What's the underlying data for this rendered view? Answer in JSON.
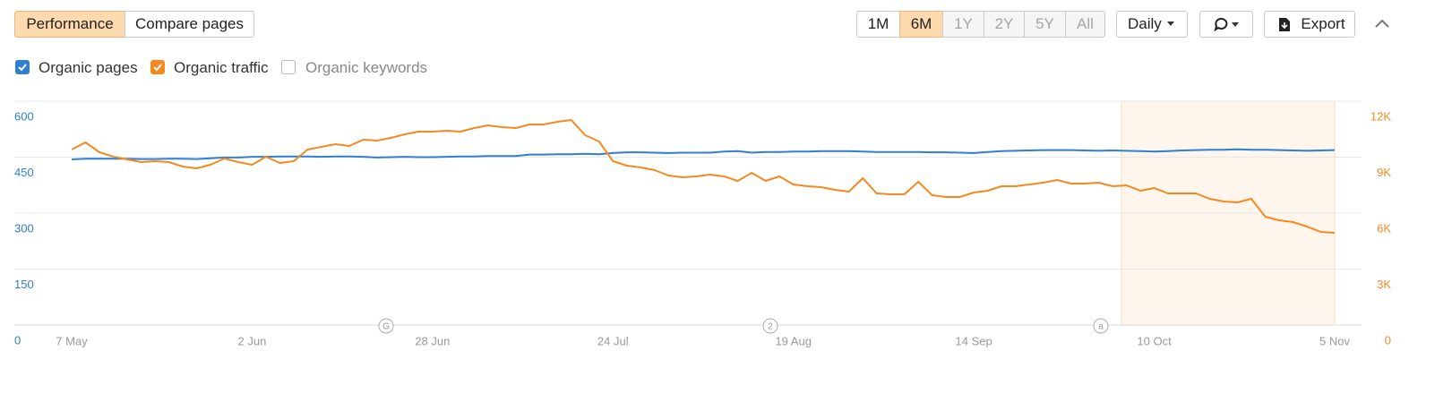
{
  "ui": {
    "tabs": [
      "Performance",
      "Compare pages"
    ],
    "periods": [
      "1M",
      "6M",
      "1Y",
      "2Y",
      "5Y",
      "All"
    ],
    "interval": "Daily",
    "export": "Export",
    "unchecked_series": "Organic keywords"
  },
  "chart_data": {
    "type": "line",
    "categories": [
      "7 May",
      null,
      null,
      null,
      null,
      null,
      null,
      null,
      null,
      null,
      null,
      null,
      null,
      "2 Jun",
      null,
      null,
      null,
      null,
      null,
      null,
      null,
      null,
      null,
      null,
      null,
      null,
      "28 Jun",
      null,
      null,
      null,
      null,
      null,
      null,
      null,
      null,
      null,
      null,
      null,
      null,
      "24 Jul",
      null,
      null,
      null,
      null,
      null,
      null,
      null,
      null,
      null,
      null,
      null,
      null,
      "19 Aug",
      null,
      null,
      null,
      null,
      null,
      null,
      null,
      null,
      null,
      null,
      null,
      null,
      "14 Sep",
      null,
      null,
      null,
      null,
      null,
      null,
      null,
      null,
      null,
      null,
      null,
      null,
      "10 Oct",
      null,
      null,
      null,
      null,
      null,
      null,
      null,
      null,
      null,
      null,
      null,
      null,
      "5 Nov"
    ],
    "series": [
      {
        "name": "Organic pages",
        "color": "#2e7fd3",
        "axis": "y",
        "values": [
          444,
          446,
          446,
          446,
          446,
          445,
          445,
          446,
          446,
          445,
          447,
          449,
          449,
          451,
          451,
          452,
          452,
          452,
          451,
          452,
          452,
          451,
          449,
          450,
          451,
          450,
          450,
          451,
          452,
          452,
          453,
          453,
          453,
          457,
          457,
          458,
          458,
          459,
          458,
          461,
          463,
          463,
          462,
          461,
          462,
          462,
          462,
          465,
          466,
          462,
          464,
          464,
          465,
          465,
          466,
          466,
          466,
          465,
          464,
          464,
          464,
          464,
          463,
          463,
          462,
          461,
          464,
          466,
          467,
          468,
          469,
          469,
          469,
          468,
          467,
          468,
          467,
          466,
          465,
          466,
          468,
          469,
          470,
          470,
          471,
          470,
          470,
          469,
          468,
          467,
          468,
          469
        ]
      },
      {
        "name": "Organic traffic",
        "color": "#f5891f",
        "axis": "y2",
        "values": [
          9408,
          9792,
          9264,
          9024,
          8880,
          8736,
          8784,
          8736,
          8496,
          8400,
          8592,
          8928,
          8736,
          8592,
          9024,
          8688,
          8784,
          9408,
          9552,
          9696,
          9600,
          9936,
          9888,
          10032,
          10224,
          10368,
          10368,
          10416,
          10368,
          10560,
          10704,
          10608,
          10560,
          10752,
          10752,
          10896,
          10992,
          10176,
          9840,
          8784,
          8544,
          8448,
          8304,
          8016,
          7920,
          7968,
          8064,
          7968,
          7728,
          8160,
          7728,
          7968,
          7536,
          7440,
          7392,
          7248,
          7152,
          7872,
          7056,
          7008,
          7008,
          7680,
          6960,
          6864,
          6864,
          7104,
          7200,
          7440,
          7440,
          7536,
          7632,
          7776,
          7584,
          7584,
          7632,
          7440,
          7488,
          7200,
          7344,
          7056,
          7056,
          7056,
          6768,
          6624,
          6576,
          6768,
          5808,
          5616,
          5520,
          5280,
          4992,
          4944
        ]
      }
    ],
    "ylim": [
      0,
      600
    ],
    "yticks": [
      0,
      150,
      300,
      450,
      600
    ],
    "y2lim": [
      0,
      12000
    ],
    "y2ticks": [
      0,
      {
        "value": 3000,
        "label": "3K"
      },
      {
        "value": 6000,
        "label": "6K"
      },
      {
        "value": 9000,
        "label": "9K"
      },
      {
        "value": 12000,
        "label": "12K"
      }
    ],
    "grid": true,
    "annotations": [
      "G",
      "2",
      "a"
    ]
  }
}
